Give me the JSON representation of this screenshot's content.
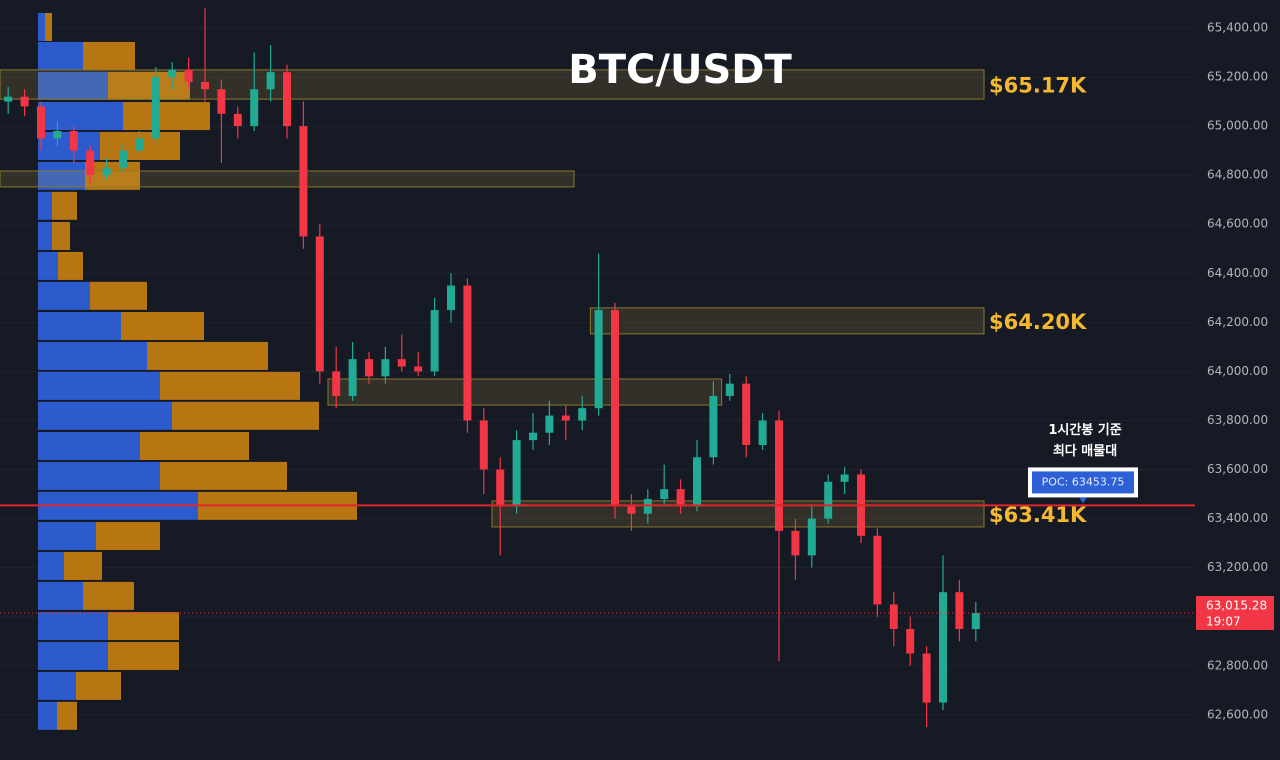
{
  "chart_data": {
    "type": "candlestick",
    "title": "BTC/USDT",
    "ylim": [
      62416,
      65514
    ],
    "yticks": [
      {
        "value": 62600,
        "label": "62,600.00"
      },
      {
        "value": 62800,
        "label": "62,800.00"
      },
      {
        "value": 63000,
        "label": "63,000.00"
      },
      {
        "value": 63200,
        "label": "63,200.00"
      },
      {
        "value": 63400,
        "label": "63,400.00"
      },
      {
        "value": 63600,
        "label": "63,600.00"
      },
      {
        "value": 63800,
        "label": "63,800.00"
      },
      {
        "value": 64000,
        "label": "64,000.00"
      },
      {
        "value": 64200,
        "label": "64,200.00"
      },
      {
        "value": 64400,
        "label": "64,400.00"
      },
      {
        "value": 64600,
        "label": "64,600.00"
      },
      {
        "value": 64800,
        "label": "64,800.00"
      },
      {
        "value": 65000,
        "label": "65,000.00"
      },
      {
        "value": 65200,
        "label": "65,200.00"
      },
      {
        "value": 65400,
        "label": "65,400.00"
      }
    ],
    "grid": true,
    "up_color": "#22ab94",
    "down_color": "#f23645",
    "candles": [
      [
        65100,
        65160,
        65050,
        65120
      ],
      [
        65120,
        65150,
        65040,
        65080
      ],
      [
        65080,
        65100,
        64900,
        64950
      ],
      [
        64950,
        65020,
        64920,
        64980
      ],
      [
        64980,
        65000,
        64850,
        64900
      ],
      [
        64900,
        64920,
        64760,
        64800
      ],
      [
        64800,
        64870,
        64780,
        64830
      ],
      [
        64830,
        64930,
        64810,
        64900
      ],
      [
        64900,
        64980,
        64880,
        64950
      ],
      [
        64950,
        65240,
        64930,
        65200
      ],
      [
        65200,
        65260,
        65150,
        65230
      ],
      [
        65230,
        65280,
        65150,
        65180
      ],
      [
        65180,
        65480,
        65100,
        65150
      ],
      [
        65150,
        65190,
        64850,
        65050
      ],
      [
        65050,
        65080,
        64950,
        65000
      ],
      [
        65000,
        65300,
        64980,
        65150
      ],
      [
        65150,
        65330,
        65100,
        65220
      ],
      [
        65220,
        65250,
        64950,
        65000
      ],
      [
        65000,
        65100,
        64500,
        64550
      ],
      [
        64550,
        64600,
        63950,
        64000
      ],
      [
        64000,
        64100,
        63850,
        63900
      ],
      [
        63900,
        64120,
        63880,
        64050
      ],
      [
        64050,
        64080,
        63950,
        63980
      ],
      [
        63980,
        64100,
        63950,
        64050
      ],
      [
        64050,
        64150,
        64000,
        64020
      ],
      [
        64020,
        64080,
        63980,
        64000
      ],
      [
        64000,
        64300,
        63980,
        64250
      ],
      [
        64250,
        64400,
        64200,
        64350
      ],
      [
        64350,
        64380,
        63750,
        63800
      ],
      [
        63800,
        63850,
        63500,
        63600
      ],
      [
        63600,
        63650,
        63250,
        63450
      ],
      [
        63450,
        63760,
        63420,
        63720
      ],
      [
        63720,
        63830,
        63680,
        63750
      ],
      [
        63750,
        63880,
        63700,
        63820
      ],
      [
        63820,
        63860,
        63720,
        63800
      ],
      [
        63800,
        63900,
        63760,
        63850
      ],
      [
        63850,
        64480,
        63820,
        64250
      ],
      [
        64250,
        64280,
        63400,
        63450
      ],
      [
        63450,
        63500,
        63350,
        63420
      ],
      [
        63420,
        63520,
        63380,
        63480
      ],
      [
        63480,
        63620,
        63450,
        63520
      ],
      [
        63520,
        63560,
        63420,
        63450
      ],
      [
        63450,
        63720,
        63430,
        63650
      ],
      [
        63650,
        63960,
        63620,
        63900
      ],
      [
        63900,
        63990,
        63880,
        63950
      ],
      [
        63950,
        63980,
        63650,
        63700
      ],
      [
        63700,
        63830,
        63680,
        63800
      ],
      [
        63800,
        63840,
        62820,
        63350
      ],
      [
        63350,
        63400,
        63150,
        63250
      ],
      [
        63250,
        63450,
        63200,
        63400
      ],
      [
        63400,
        63580,
        63380,
        63550
      ],
      [
        63550,
        63610,
        63500,
        63580
      ],
      [
        63580,
        63600,
        63300,
        63330
      ],
      [
        63330,
        63360,
        63000,
        63050
      ],
      [
        63050,
        63100,
        62880,
        62950
      ],
      [
        62950,
        63000,
        62800,
        62850
      ],
      [
        62850,
        62880,
        62550,
        62650
      ],
      [
        62650,
        63250,
        62620,
        63100
      ],
      [
        63100,
        63150,
        62900,
        62950
      ],
      [
        62950,
        63060,
        62900,
        63015
      ]
    ],
    "volume_profile": {
      "buy_color": "#2d5fd6",
      "sell_color": "#d3870f",
      "rows": [
        {
          "price": 65404,
          "buy": 7,
          "sell": 7
        },
        {
          "price": 65286,
          "buy": 45,
          "sell": 52
        },
        {
          "price": 65164,
          "buy": 70,
          "sell": 82
        },
        {
          "price": 65041,
          "buy": 85,
          "sell": 87
        },
        {
          "price": 64919,
          "buy": 62,
          "sell": 80
        },
        {
          "price": 64797,
          "buy": 47,
          "sell": 55
        },
        {
          "price": 64675,
          "buy": 14,
          "sell": 25
        },
        {
          "price": 64552,
          "buy": 14,
          "sell": 18
        },
        {
          "price": 64430,
          "buy": 20,
          "sell": 25
        },
        {
          "price": 64308,
          "buy": 52,
          "sell": 57
        },
        {
          "price": 64185,
          "buy": 83,
          "sell": 83
        },
        {
          "price": 64063,
          "buy": 109,
          "sell": 121
        },
        {
          "price": 63941,
          "buy": 122,
          "sell": 140
        },
        {
          "price": 63819,
          "buy": 134,
          "sell": 147
        },
        {
          "price": 63696,
          "buy": 102,
          "sell": 109
        },
        {
          "price": 63574,
          "buy": 122,
          "sell": 127
        },
        {
          "price": 63452,
          "buy": 160,
          "sell": 159
        },
        {
          "price": 63329,
          "buy": 58,
          "sell": 64
        },
        {
          "price": 63207,
          "buy": 26,
          "sell": 38
        },
        {
          "price": 63085,
          "buy": 45,
          "sell": 51
        },
        {
          "price": 62962,
          "buy": 70,
          "sell": 71
        },
        {
          "price": 62840,
          "buy": 70,
          "sell": 71
        },
        {
          "price": 62718,
          "buy": 38,
          "sell": 45
        },
        {
          "price": 62596,
          "buy": 19,
          "sell": 20
        }
      ]
    },
    "zones": [
      {
        "low": 65110,
        "high": 65229,
        "start": 0,
        "end": 60,
        "label": "$65.17K"
      },
      {
        "low": 64153,
        "high": 64259,
        "start": 36,
        "end": 60,
        "label": "$64.20K"
      },
      {
        "low": 63366,
        "high": 63472,
        "start": 30,
        "end": 60,
        "label": "$63.41K"
      },
      {
        "low": 64752,
        "high": 64817,
        "start": 0,
        "end": 35
      },
      {
        "low": 63863,
        "high": 63969,
        "start": 20,
        "end": 44
      }
    ],
    "poc": {
      "value": 63453.75,
      "label": "POC: 63453.75",
      "color": "#e0262c"
    },
    "annotation": [
      "1시간봉 기준",
      "최다 매물대"
    ],
    "price_label": {
      "value": 63015.28,
      "label": "63,015.28",
      "countdown": "19:07"
    }
  }
}
